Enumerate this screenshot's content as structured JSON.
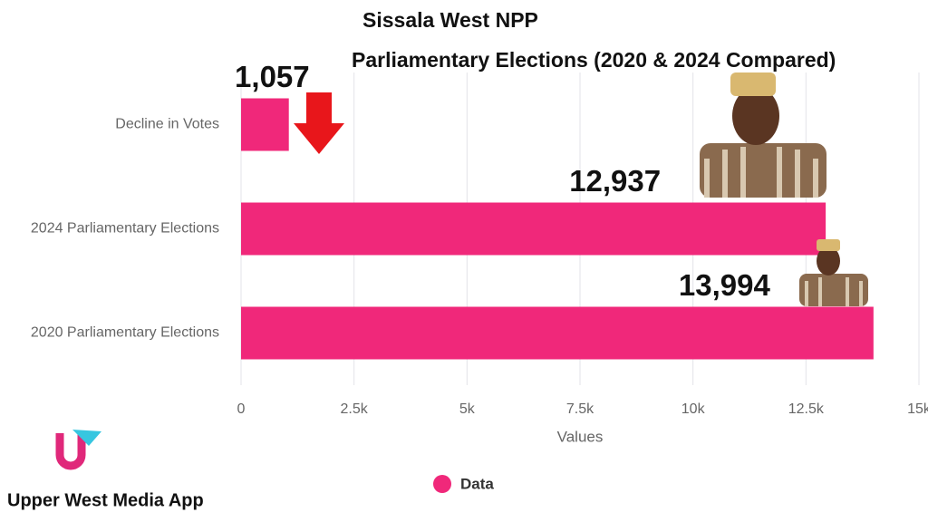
{
  "chart_data": {
    "type": "barh",
    "title": "Sissala West NPP",
    "subtitle": "Parliamentary Elections (2020 & 2024 Compared)",
    "categories": [
      "Decline in Votes",
      "2024 Parliamentary Elections",
      "2020 Parliamentary Elections"
    ],
    "series": [
      {
        "name": "Data",
        "color": "#f0287a",
        "values": [
          1057,
          12937,
          13994
        ],
        "value_labels": [
          "1,057",
          "12,937",
          "13,994"
        ]
      }
    ],
    "xlabel": "Values",
    "xlim": [
      0,
      15000
    ],
    "xticks": [
      0,
      {
        "value": 2500,
        "label": "2.5k"
      },
      {
        "value": 5000,
        "label": "5k"
      },
      {
        "value": 7500,
        "label": "7.5k"
      },
      {
        "value": 10000,
        "label": "10k"
      },
      {
        "value": 12500,
        "label": "12.5k"
      },
      {
        "value": 15000,
        "label": "15k"
      }
    ],
    "grid": true
  },
  "brand": "Upper West Media App"
}
